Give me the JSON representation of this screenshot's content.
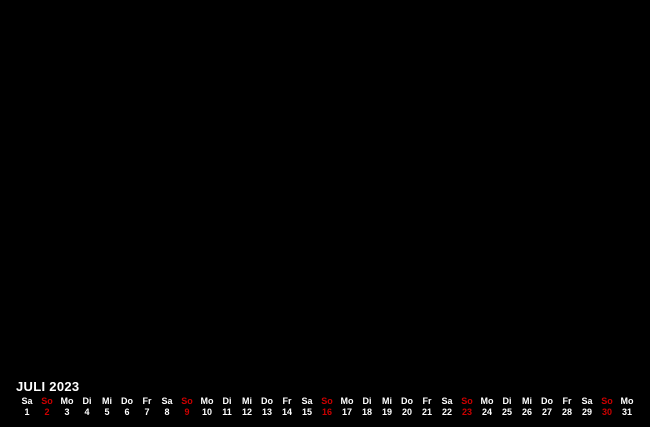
{
  "background_color": "#000000",
  "calendar": {
    "title": "JULI 2023",
    "text_color": "#ffffff",
    "sunday_color": "#cc0000",
    "days": [
      {
        "weekday": "Sa",
        "date": "1",
        "sunday": false
      },
      {
        "weekday": "So",
        "date": "2",
        "sunday": true
      },
      {
        "weekday": "Mo",
        "date": "3",
        "sunday": false
      },
      {
        "weekday": "Di",
        "date": "4",
        "sunday": false
      },
      {
        "weekday": "Mi",
        "date": "5",
        "sunday": false
      },
      {
        "weekday": "Do",
        "date": "6",
        "sunday": false
      },
      {
        "weekday": "Fr",
        "date": "7",
        "sunday": false
      },
      {
        "weekday": "Sa",
        "date": "8",
        "sunday": false
      },
      {
        "weekday": "So",
        "date": "9",
        "sunday": true
      },
      {
        "weekday": "Mo",
        "date": "10",
        "sunday": false
      },
      {
        "weekday": "Di",
        "date": "11",
        "sunday": false
      },
      {
        "weekday": "Mi",
        "date": "12",
        "sunday": false
      },
      {
        "weekday": "Do",
        "date": "13",
        "sunday": false
      },
      {
        "weekday": "Fr",
        "date": "14",
        "sunday": false
      },
      {
        "weekday": "Sa",
        "date": "15",
        "sunday": false
      },
      {
        "weekday": "So",
        "date": "16",
        "sunday": true
      },
      {
        "weekday": "Mo",
        "date": "17",
        "sunday": false
      },
      {
        "weekday": "Di",
        "date": "18",
        "sunday": false
      },
      {
        "weekday": "Mi",
        "date": "19",
        "sunday": false
      },
      {
        "weekday": "Do",
        "date": "20",
        "sunday": false
      },
      {
        "weekday": "Fr",
        "date": "21",
        "sunday": false
      },
      {
        "weekday": "Sa",
        "date": "22",
        "sunday": false
      },
      {
        "weekday": "So",
        "date": "23",
        "sunday": true
      },
      {
        "weekday": "Mo",
        "date": "24",
        "sunday": false
      },
      {
        "weekday": "Di",
        "date": "25",
        "sunday": false
      },
      {
        "weekday": "Mi",
        "date": "26",
        "sunday": false
      },
      {
        "weekday": "Do",
        "date": "27",
        "sunday": false
      },
      {
        "weekday": "Fr",
        "date": "28",
        "sunday": false
      },
      {
        "weekday": "Sa",
        "date": "29",
        "sunday": false
      },
      {
        "weekday": "So",
        "date": "30",
        "sunday": true
      },
      {
        "weekday": "Mo",
        "date": "31",
        "sunday": false
      }
    ]
  }
}
